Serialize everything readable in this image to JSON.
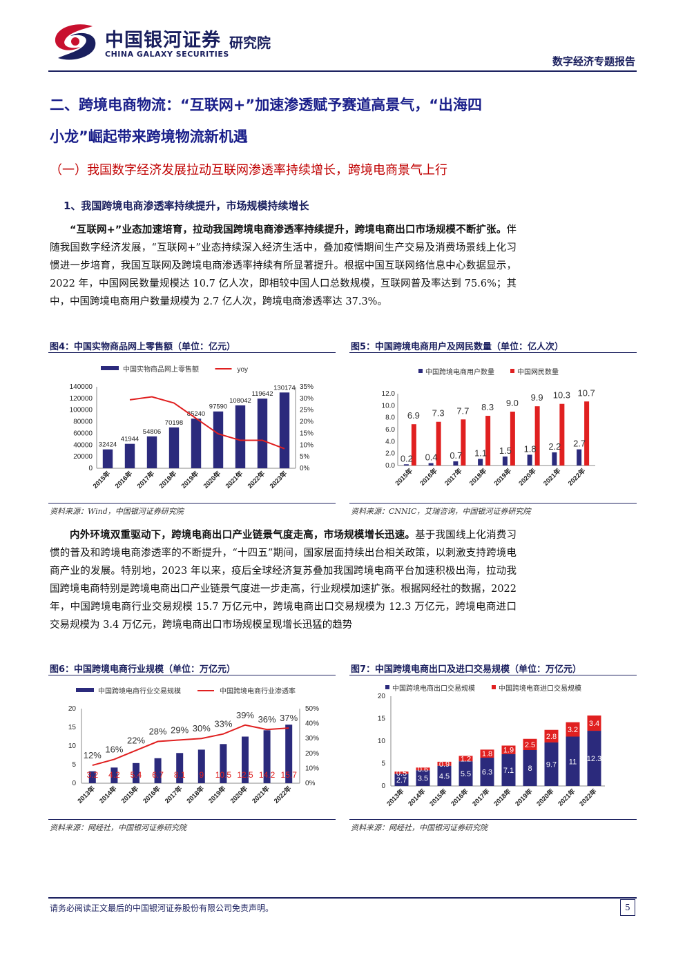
{
  "header": {
    "logo_cn": "中国银河证券",
    "logo_en": "CHINA GALAXY SECURITIES",
    "institute": "研究院",
    "report_type": "数字经济专题报告"
  },
  "section": {
    "h1_line1": "二、跨境电商物流：“互联网+”加速渗透赋予赛道高景气，“出海四",
    "h1_line2": "小龙”崛起带来跨境物流新机遇",
    "h2": "（一）我国数字经济发展拉动互联网渗透率持续增长，跨境电商景气上行",
    "h3": "1、我国跨境电商渗透率持续提升，市场规模持续增长"
  },
  "para1": {
    "bold": "“互联网+”业态加速培育，拉动我国跨境电商渗透率持续提升，跨境电商出口市场规模不断扩张。",
    "text": "伴随我国数字经济发展，“互联网+”业态持续深入经济生活中，叠加疫情期间生产交易及消费场景线上化习惯进一步培育，我国互联网及跨境电商渗透率持续有所显著提升。根据中国互联网络信息中心数据显示，2022 年，中国网民数量规模达 10.7 亿人次，即相较中国人口总数规模，互联网普及率达到 75.6%；其中，中国跨境电商用户数量规模为 2.7 亿人次，跨境电商渗透率达 37.3%。"
  },
  "para2": {
    "bold": "内外环境双重驱动下，跨境电商出口产业链景气度走高，市场规模增长迅速。",
    "text": "基于我国线上化消费习惯的普及和跨境电商渗透率的不断提升，“十四五”期间，国家层面持续出台相关政策，以刺激支持跨境电商产业的发展。特别地，2023 年以来，疫后全球经济复苏叠加我国跨境电商平台加速积极出海，拉动我国跨境电商特别是跨境电商出口产业链景气度进一步走高，行业规模加速扩张。根据网经社的数据，2022 年，中国跨境电商行业交易规模 15.7 万亿元中，跨境电商出口交易规模为 12.3 万亿元，跨境电商进口交易规模为 3.4 万亿元，跨境电商出口市场规模呈现增长迅猛的趋势"
  },
  "figures": {
    "f4": {
      "title": "图4：中国实物商品网上零售额（单位：亿元）",
      "source": "资料来源：Wind，中国银河证券研究院"
    },
    "f5": {
      "title": "图5：中国跨境电商用户及网民数量（单位：亿人次）",
      "source": "资料来源：CNNIC，艾瑞咨询，中国银河证券研究院"
    },
    "f6": {
      "title": "图6：中国跨境电商行业规模（单位：万亿元）",
      "source": "资料来源：网经社，中国银河证券研究院"
    },
    "f7": {
      "title": "图7：中国跨境电商出口及进口交易规模（单位：万亿元）",
      "source": "资料来源：网经社，中国银河证券研究院"
    }
  },
  "chart_data": [
    {
      "id": "f4",
      "type": "bar+line",
      "categories": [
        "2015年",
        "2016年",
        "2017年",
        "2018年",
        "2019年",
        "2020年",
        "2021年",
        "2022年",
        "2023年"
      ],
      "series": [
        {
          "name": "中国实物商品网上零售额",
          "type": "bar",
          "axis": "left",
          "color": "#2b2a7c",
          "values": [
            32424,
            41944,
            54806,
            70198,
            85240,
            97590,
            108042,
            119642,
            130174
          ]
        },
        {
          "name": "yoy",
          "type": "line",
          "axis": "right",
          "color": "#e02020",
          "values": [
            null,
            29.4,
            30.7,
            28.0,
            21.4,
            14.8,
            12.0,
            12.0,
            8.4
          ]
        }
      ],
      "ylim_left": [
        0,
        140000
      ],
      "yticks_left": [
        0,
        20000,
        40000,
        60000,
        80000,
        100000,
        120000,
        140000
      ],
      "ylim_right": [
        0,
        35
      ],
      "yticks_right": [
        "0%",
        "5%",
        "10%",
        "15%",
        "20%",
        "25%",
        "30%",
        "35%"
      ],
      "data_labels": [
        "32424",
        "41944",
        "54806",
        "70198",
        "85240",
        "97590",
        "108042",
        "119642",
        "130174"
      ],
      "legend": "top"
    },
    {
      "id": "f5",
      "type": "bar",
      "categories": [
        "2015年",
        "2016年",
        "2017年",
        "2018年",
        "2019年",
        "2020年",
        "2021年",
        "2022年"
      ],
      "series": [
        {
          "name": "中国跨境电商用户数量",
          "color": "#2b2a7c",
          "values": [
            0.2,
            0.4,
            0.7,
            1.1,
            1.5,
            1.8,
            2.2,
            2.7
          ]
        },
        {
          "name": "中国网民数量",
          "color": "#e02020",
          "values": [
            6.9,
            7.3,
            7.7,
            8.3,
            9.0,
            9.9,
            10.3,
            10.7
          ]
        }
      ],
      "data_labels_user": [
        "0.2",
        "0.4",
        "0.7",
        "1.1",
        "1.5",
        "1.8",
        "2.2",
        "2.7"
      ],
      "data_labels_net": [
        "6.9",
        "7.3",
        "7.7",
        "8.3",
        "9.0",
        "9.9",
        "10.3",
        "10.7"
      ],
      "ylim": [
        0,
        12
      ],
      "yticks": [
        "0.0",
        "2.0",
        "4.0",
        "6.0",
        "8.0",
        "10.0",
        "12.0"
      ],
      "legend": "top"
    },
    {
      "id": "f6",
      "type": "bar+line",
      "categories": [
        "2013年",
        "2014年",
        "2015年",
        "2016年",
        "2017年",
        "2018年",
        "2019年",
        "2020年",
        "2021年",
        "2022年"
      ],
      "series": [
        {
          "name": "中国跨境电商行业交易规模",
          "type": "bar",
          "axis": "left",
          "color": "#2b2a7c",
          "values": [
            3.2,
            4.2,
            5.4,
            6.7,
            8.1,
            9,
            10.5,
            12.5,
            14.2,
            15.7
          ]
        },
        {
          "name": "中国跨境电商行业渗透率",
          "type": "line",
          "axis": "right",
          "color": "#e02020",
          "values": [
            12,
            16,
            22,
            28,
            29,
            30,
            33,
            39,
            36,
            37
          ]
        }
      ],
      "bar_labels": [
        "3.2",
        "4.2",
        "5.4",
        "6.7",
        "8.1",
        "9",
        "10.5",
        "12.5",
        "14.2",
        "15.7"
      ],
      "line_labels": [
        "12%",
        "16%",
        "22%",
        "28%",
        "29%",
        "30%",
        "33%",
        "39%",
        "36%",
        "37%"
      ],
      "ylim_left": [
        0,
        20
      ],
      "yticks_left": [
        "0",
        "5",
        "10",
        "15",
        "20"
      ],
      "ylim_right": [
        0,
        50
      ],
      "yticks_right": [
        "0%",
        "10%",
        "20%",
        "30%",
        "40%",
        "50%"
      ],
      "legend": "top"
    },
    {
      "id": "f7",
      "type": "stacked-bar",
      "categories": [
        "2013年",
        "2014年",
        "2015年",
        "2016年",
        "2017年",
        "2018年",
        "2019年",
        "2020年",
        "2021年",
        "2022年"
      ],
      "series": [
        {
          "name": "中国跨境电商出口交易规模",
          "color": "#2b2a7c",
          "values": [
            2.7,
            3.5,
            4.5,
            5.5,
            6.3,
            7.1,
            8,
            9.7,
            11,
            12.3
          ]
        },
        {
          "name": "中国跨境电商进口交易规模",
          "color": "#e02020",
          "values": [
            0.5,
            0.6,
            0.9,
            1.2,
            1.8,
            1.9,
            2.5,
            2.8,
            3.2,
            3.4
          ]
        }
      ],
      "labels_export": [
        "2.7",
        "3.5",
        "4.5",
        "5.5",
        "6.3",
        "7.1",
        "8",
        "9.7",
        "11",
        "12.3"
      ],
      "labels_import": [
        "0.5",
        "0.6",
        "0.9",
        "1.2",
        "1.8",
        "1.9",
        "2.5",
        "2.8",
        "3.2",
        "3.4"
      ],
      "ylim": [
        0,
        20
      ],
      "yticks": [
        "0",
        "5",
        "10",
        "15",
        "20"
      ],
      "legend": "top"
    }
  ],
  "footer": {
    "disclaimer": "请务必阅读正文最后的中国银河证券股份有限公司免责声明。",
    "page": "5"
  }
}
